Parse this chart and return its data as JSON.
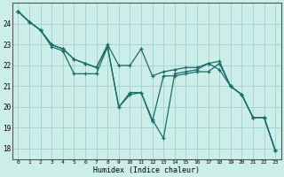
{
  "bg_color": "#cceee8",
  "grid_color": "#aad4ce",
  "line_color": "#1a6b6b",
  "xlabel": "Humidex (Indice chaleur)",
  "ylim": [
    17.5,
    25.0
  ],
  "xlim": [
    -0.5,
    23.5
  ],
  "yticks": [
    18,
    19,
    20,
    21,
    22,
    23,
    24
  ],
  "xticks": [
    0,
    1,
    2,
    3,
    4,
    5,
    6,
    7,
    8,
    9,
    10,
    11,
    12,
    13,
    14,
    15,
    16,
    17,
    18,
    19,
    20,
    21,
    22,
    23
  ],
  "series": [
    [
      24.6,
      24.1,
      23.7,
      23.0,
      22.8,
      22.3,
      22.1,
      21.9,
      23.0,
      22.0,
      22.0,
      22.8,
      21.5,
      21.7,
      21.8,
      21.9,
      21.9,
      22.1,
      21.8,
      21.0,
      20.6,
      19.5,
      19.5,
      17.9
    ],
    [
      24.6,
      24.1,
      23.7,
      23.0,
      22.8,
      22.3,
      22.1,
      21.9,
      22.9,
      20.0,
      20.7,
      20.7,
      19.4,
      18.5,
      21.6,
      21.7,
      21.8,
      22.1,
      22.2,
      21.0,
      20.6,
      19.5,
      19.5,
      17.9
    ],
    [
      24.6,
      24.1,
      23.7,
      22.9,
      22.7,
      21.6,
      21.6,
      21.6,
      22.9,
      20.0,
      20.6,
      20.7,
      19.3,
      21.5,
      21.5,
      21.6,
      21.7,
      21.7,
      22.1,
      21.0,
      20.6,
      19.5,
      19.5,
      17.9
    ]
  ]
}
